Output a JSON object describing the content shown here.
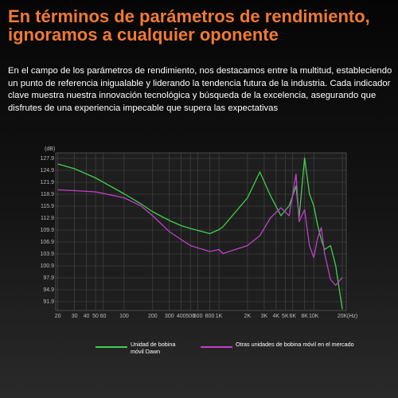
{
  "chart_data": {
    "type": "line",
    "title": "En términos de parámetros de rendimiento, ignoramos a cualquier oponente",
    "subtitle": "En el campo de los parámetros de rendimiento, nos destacamos entre la multitud, estableciendo un punto de referencia inigualable y liderando la tendencia futura de la industria. Cada indicador clave muestra nuestra innovación tecnológica y búsqueda de la excelencia, asegurando que disfrutes de una experiencia impecable que supera las expectativas",
    "y_label": "(dB)",
    "x_label": "(Hz)",
    "x_log": true,
    "grid": true,
    "x": [
      20,
      30,
      50,
      100,
      150,
      200,
      300,
      400,
      500,
      800,
      1000,
      1100,
      2000,
      2700,
      3500,
      4500,
      5500,
      6500,
      7000,
      8000,
      9000,
      10000,
      11000,
      12000,
      13000,
      15000,
      17000,
      20000
    ],
    "series": [
      {
        "name": "Unidad de bobina móvil Dawn",
        "color": "#3fd14a",
        "values": [
          126.5,
          125.3,
          123,
          119,
          116.5,
          114.5,
          112.3,
          111,
          110.3,
          109,
          110,
          110.7,
          118,
          124.5,
          118.5,
          113.5,
          116,
          121,
          113,
          128,
          119,
          116,
          111,
          107.5,
          105,
          106,
          101,
          90
        ]
      },
      {
        "name": "Otras unidades de bobina móvil en el mercado",
        "color": "#c040c8",
        "values": [
          120,
          119.8,
          119.5,
          118,
          116,
          113.5,
          109.5,
          107.5,
          106,
          104.5,
          105,
          104,
          106,
          108.5,
          113,
          115.5,
          113.5,
          124,
          112,
          115,
          106,
          103,
          108,
          110.5,
          104,
          97.5,
          96,
          98
        ]
      }
    ],
    "xlim": [
      19,
      22000
    ],
    "ylim": [
      89.7,
      129.3
    ],
    "yticks": [
      91.9,
      94.9,
      97.9,
      100.9,
      103.9,
      106.9,
      109.9,
      112.9,
      115.9,
      118.9,
      121.9,
      124.9,
      127.9
    ],
    "xticks": [
      20,
      30,
      40,
      50,
      60,
      100,
      200,
      300,
      400,
      500,
      600,
      800,
      {
        "value": 1000,
        "label": "1K"
      },
      {
        "value": 2000,
        "label": "2K"
      },
      {
        "value": 3000,
        "label": "3K"
      },
      {
        "value": 4000,
        "label": "4K"
      },
      {
        "value": 5000,
        "label": "5K"
      },
      {
        "value": 6000,
        "label": "6K"
      },
      {
        "value": 8000,
        "label": "8K"
      },
      {
        "value": 10000,
        "label": "10K"
      },
      {
        "value": 20000,
        "label": "20K"
      }
    ]
  }
}
